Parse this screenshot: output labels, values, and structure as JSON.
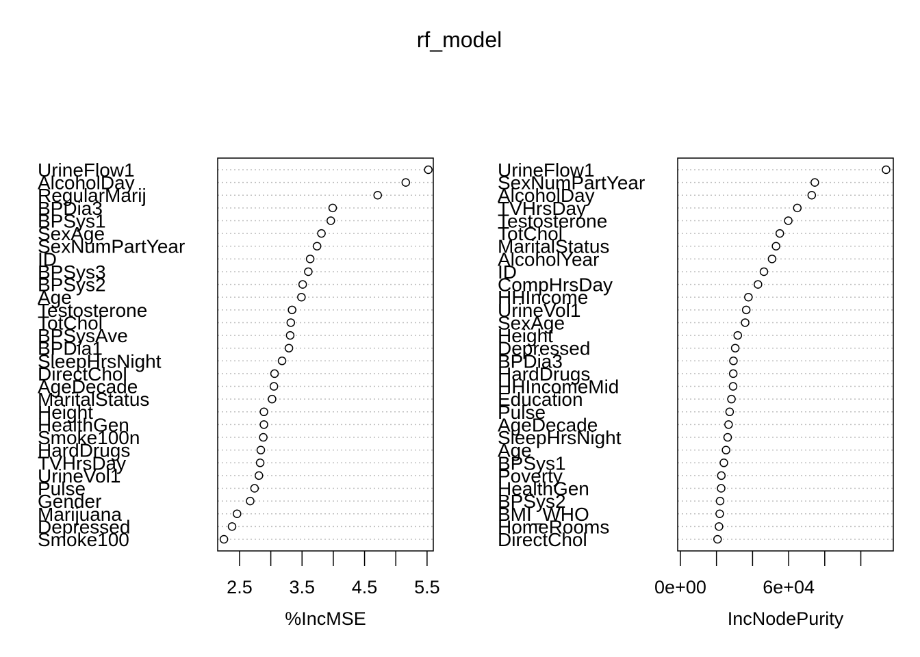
{
  "title": "rf_model",
  "chart_data": [
    {
      "type": "scatter",
      "xlabel": "%IncMSE",
      "xlim": [
        2.15,
        5.6
      ],
      "ticks": [
        2.5,
        3.0,
        3.5,
        4.0,
        4.5,
        5.0,
        5.5
      ],
      "tick_labels": [
        "2.5",
        "",
        "3.5",
        "",
        "4.5",
        "",
        "5.5"
      ],
      "grid": true,
      "categories": [
        "UrineFlow1",
        "AlcoholDay",
        "RegularMarij",
        "BPDia3",
        "BPSys1",
        "SexAge",
        "SexNumPartYear",
        "ID",
        "BPSys3",
        "BPSys2",
        "Age",
        "Testosterone",
        "TotChol",
        "BPSysAve",
        "BPDia1",
        "SleepHrsNight",
        "DirectChol",
        "AgeDecade",
        "MaritalStatus",
        "Height",
        "HealthGen",
        "Smoke100n",
        "HardDrugs",
        "TVHrsDay",
        "UrineVol1",
        "Pulse",
        "Gender",
        "Marijuana",
        "Depressed",
        "Smoke100"
      ],
      "values": [
        5.52,
        5.16,
        4.71,
        3.99,
        3.96,
        3.81,
        3.74,
        3.63,
        3.6,
        3.51,
        3.49,
        3.34,
        3.32,
        3.31,
        3.29,
        3.18,
        3.06,
        3.05,
        3.02,
        2.89,
        2.89,
        2.88,
        2.84,
        2.83,
        2.81,
        2.74,
        2.67,
        2.46,
        2.38,
        2.25
      ]
    },
    {
      "type": "scatter",
      "xlabel": "IncNodePurity",
      "xlim": [
        -1500,
        118000
      ],
      "ticks": [
        0,
        20000,
        40000,
        60000,
        80000,
        100000
      ],
      "tick_labels": [
        "0e+00",
        "",
        "",
        "6e+04",
        "",
        ""
      ],
      "grid": true,
      "categories": [
        "UrineFlow1",
        "SexNumPartYear",
        "AlcoholDay",
        "TVHrsDay",
        "Testosterone",
        "TotChol",
        "MaritalStatus",
        "AlcoholYear",
        "ID",
        "CompHrsDay",
        "HHIncome",
        "UrineVol1",
        "SexAge",
        "Height",
        "Depressed",
        "BPDia3",
        "HardDrugs",
        "HHIncomeMid",
        "Education",
        "Pulse",
        "AgeDecade",
        "SleepHrsNight",
        "Age",
        "BPSys1",
        "Poverty",
        "HealthGen",
        "BPSys2",
        "BMI_WHO",
        "HomeRooms",
        "DirectChol"
      ],
      "values": [
        114000,
        74500,
        72800,
        64800,
        59800,
        55100,
        53000,
        50800,
        46300,
        43000,
        37700,
        36500,
        35900,
        31800,
        30400,
        29400,
        29300,
        29200,
        28300,
        27300,
        26700,
        26200,
        25300,
        24100,
        22700,
        22600,
        22000,
        21800,
        21400,
        20600
      ]
    }
  ]
}
